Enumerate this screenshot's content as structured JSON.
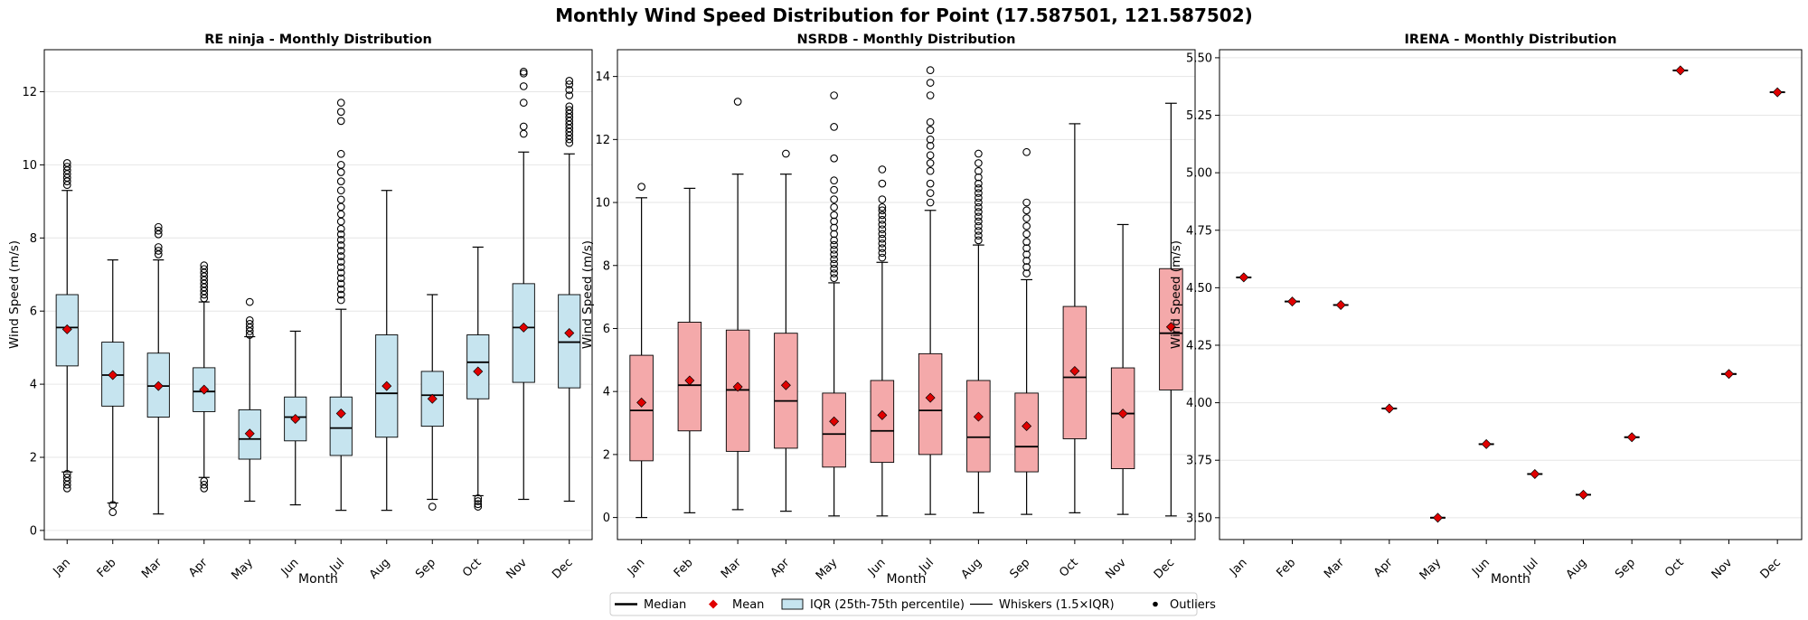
{
  "figure": {
    "title": "Monthly Wind Speed Distribution for Point (17.587501, 121.587502)"
  },
  "legend": {
    "entries": [
      "Median",
      "Mean",
      "IQR (25th-75th percentile)",
      "Whiskers (1.5×IQR)",
      "Outliers"
    ],
    "placement": "bottom-center"
  },
  "colors": {
    "re_ninja_box": "#c6e4ef",
    "nsrdb_box": "#f4a9aa",
    "mean_marker": "#e00000",
    "grid": "#e6e6e6"
  },
  "chart_data": [
    {
      "type": "box",
      "title": "RE ninja - Monthly Distribution",
      "xlabel": "Month",
      "ylabel": "Wind Speed (m/s)",
      "ylim": [
        -0.25,
        13.15
      ],
      "yticks": [
        "0",
        "2",
        "4",
        "6",
        "8",
        "10",
        "12"
      ],
      "grid": "horizontal",
      "categories": [
        "Jan",
        "Feb",
        "Mar",
        "Apr",
        "May",
        "Jun",
        "Jul",
        "Aug",
        "Sep",
        "Oct",
        "Nov",
        "Dec"
      ],
      "boxes": [
        {
          "month": "Jan",
          "whisker_low": 1.6,
          "q1": 4.5,
          "median": 5.55,
          "q3": 6.45,
          "whisker_high": 9.3,
          "mean": 5.5,
          "outliers": [
            1.15,
            1.25,
            1.35,
            1.45,
            1.55,
            9.45,
            9.55,
            9.65,
            9.75,
            9.85,
            9.95,
            10.05
          ]
        },
        {
          "month": "Feb",
          "whisker_low": 0.75,
          "q1": 3.4,
          "median": 4.25,
          "q3": 5.15,
          "whisker_high": 7.4,
          "mean": 4.25,
          "outliers": [
            0.5,
            0.7
          ]
        },
        {
          "month": "Mar",
          "whisker_low": 0.45,
          "q1": 3.1,
          "median": 3.95,
          "q3": 4.85,
          "whisker_high": 7.4,
          "mean": 3.95,
          "outliers": [
            7.55,
            7.65,
            7.75,
            8.1,
            8.2,
            8.3
          ]
        },
        {
          "month": "Apr",
          "whisker_low": 1.45,
          "q1": 3.25,
          "median": 3.8,
          "q3": 4.45,
          "whisker_high": 6.25,
          "mean": 3.85,
          "outliers": [
            1.15,
            1.25,
            1.35,
            6.35,
            6.45,
            6.55,
            6.65,
            6.75,
            6.85,
            6.95,
            7.05,
            7.15,
            7.25
          ]
        },
        {
          "month": "May",
          "whisker_low": 0.8,
          "q1": 1.95,
          "median": 2.5,
          "q3": 3.3,
          "whisker_high": 5.3,
          "mean": 2.65,
          "outliers": [
            5.35,
            5.45,
            5.55,
            5.65,
            5.75,
            6.25
          ]
        },
        {
          "month": "Jun",
          "whisker_low": 0.7,
          "q1": 2.45,
          "median": 3.1,
          "q3": 3.65,
          "whisker_high": 5.45,
          "mean": 3.05,
          "outliers": []
        },
        {
          "month": "Jul",
          "whisker_low": 0.55,
          "q1": 2.05,
          "median": 2.8,
          "q3": 3.65,
          "whisker_high": 6.05,
          "mean": 3.2,
          "outliers": [
            6.3,
            6.45,
            6.6,
            6.75,
            6.9,
            7.05,
            7.2,
            7.35,
            7.5,
            7.65,
            7.8,
            7.95,
            8.1,
            8.25,
            8.45,
            8.65,
            8.85,
            9.05,
            9.3,
            9.55,
            9.8,
            10.0,
            10.3,
            11.2,
            11.45,
            11.7
          ]
        },
        {
          "month": "Aug",
          "whisker_low": 0.55,
          "q1": 2.55,
          "median": 3.75,
          "q3": 5.35,
          "whisker_high": 9.3,
          "mean": 3.95,
          "outliers": []
        },
        {
          "month": "Sep",
          "whisker_low": 0.85,
          "q1": 2.85,
          "median": 3.7,
          "q3": 4.35,
          "whisker_high": 6.45,
          "mean": 3.6,
          "outliers": [
            0.65
          ]
        },
        {
          "month": "Oct",
          "whisker_low": 0.95,
          "q1": 3.6,
          "median": 4.6,
          "q3": 5.35,
          "whisker_high": 7.75,
          "mean": 4.35,
          "outliers": [
            0.65,
            0.72,
            0.8,
            0.88
          ]
        },
        {
          "month": "Nov",
          "whisker_low": 0.85,
          "q1": 4.05,
          "median": 5.55,
          "q3": 6.75,
          "whisker_high": 10.35,
          "mean": 5.55,
          "outliers": [
            10.85,
            11.05,
            11.7,
            12.15,
            12.5,
            12.55
          ]
        },
        {
          "month": "Dec",
          "whisker_low": 0.8,
          "q1": 3.9,
          "median": 5.15,
          "q3": 6.45,
          "whisker_high": 10.3,
          "mean": 5.4,
          "outliers": [
            10.6,
            10.7,
            10.8,
            10.9,
            11.0,
            11.1,
            11.2,
            11.3,
            11.4,
            11.5,
            11.6,
            11.9,
            12.05,
            12.2,
            12.3
          ]
        }
      ]
    },
    {
      "type": "box",
      "title": "NSRDB - Monthly Distribution",
      "xlabel": "Month",
      "ylabel": "Wind Speed (m/s)",
      "ylim": [
        -0.7,
        14.85
      ],
      "yticks": [
        "0",
        "2",
        "4",
        "6",
        "8",
        "10",
        "12",
        "14"
      ],
      "grid": "horizontal",
      "categories": [
        "Jan",
        "Feb",
        "Mar",
        "Apr",
        "May",
        "Jun",
        "Jul",
        "Aug",
        "Sep",
        "Oct",
        "Nov",
        "Dec"
      ],
      "boxes": [
        {
          "month": "Jan",
          "whisker_low": 0.0,
          "q1": 1.8,
          "median": 3.4,
          "q3": 5.15,
          "whisker_high": 10.15,
          "mean": 3.65,
          "outliers": [
            10.5
          ]
        },
        {
          "month": "Feb",
          "whisker_low": 0.15,
          "q1": 2.75,
          "median": 4.2,
          "q3": 6.2,
          "whisker_high": 10.45,
          "mean": 4.35,
          "outliers": []
        },
        {
          "month": "Mar",
          "whisker_low": 0.25,
          "q1": 2.1,
          "median": 4.05,
          "q3": 5.95,
          "whisker_high": 10.9,
          "mean": 4.15,
          "outliers": [
            13.2
          ]
        },
        {
          "month": "Apr",
          "whisker_low": 0.2,
          "q1": 2.2,
          "median": 3.7,
          "q3": 5.85,
          "whisker_high": 10.9,
          "mean": 4.2,
          "outliers": [
            11.55
          ]
        },
        {
          "month": "May",
          "whisker_low": 0.05,
          "q1": 1.6,
          "median": 2.65,
          "q3": 3.95,
          "whisker_high": 7.45,
          "mean": 3.05,
          "outliers": [
            7.6,
            7.75,
            7.9,
            8.05,
            8.2,
            8.35,
            8.5,
            8.65,
            8.8,
            9.0,
            9.2,
            9.4,
            9.6,
            9.85,
            10.1,
            10.4,
            10.7,
            11.4,
            12.4,
            13.4
          ]
        },
        {
          "month": "Jun",
          "whisker_low": 0.05,
          "q1": 1.75,
          "median": 2.75,
          "q3": 4.35,
          "whisker_high": 8.1,
          "mean": 3.25,
          "outliers": [
            8.25,
            8.4,
            8.55,
            8.7,
            8.85,
            9.0,
            9.15,
            9.3,
            9.45,
            9.6,
            9.75,
            9.85,
            10.1,
            10.6,
            11.05
          ]
        },
        {
          "month": "Jul",
          "whisker_low": 0.1,
          "q1": 2.0,
          "median": 3.4,
          "q3": 5.2,
          "whisker_high": 9.75,
          "mean": 3.8,
          "outliers": [
            10.0,
            10.3,
            10.6,
            11.0,
            11.25,
            11.5,
            11.8,
            12.0,
            12.3,
            12.55,
            13.4,
            13.8,
            14.2
          ]
        },
        {
          "month": "Aug",
          "whisker_low": 0.15,
          "q1": 1.45,
          "median": 2.55,
          "q3": 4.35,
          "whisker_high": 8.65,
          "mean": 3.2,
          "outliers": [
            8.8,
            8.95,
            9.1,
            9.25,
            9.4,
            9.55,
            9.7,
            9.85,
            10.0,
            10.15,
            10.3,
            10.45,
            10.6,
            10.8,
            11.0,
            11.25,
            11.55
          ]
        },
        {
          "month": "Sep",
          "whisker_low": 0.1,
          "q1": 1.45,
          "median": 2.25,
          "q3": 3.95,
          "whisker_high": 7.55,
          "mean": 2.9,
          "outliers": [
            7.75,
            7.95,
            8.15,
            8.35,
            8.55,
            8.75,
            9.0,
            9.25,
            9.5,
            9.75,
            10.0,
            11.6
          ]
        },
        {
          "month": "Oct",
          "whisker_low": 0.15,
          "q1": 2.5,
          "median": 4.45,
          "q3": 6.7,
          "whisker_high": 12.5,
          "mean": 4.65,
          "outliers": []
        },
        {
          "month": "Nov",
          "whisker_low": 0.1,
          "q1": 1.55,
          "median": 3.3,
          "q3": 4.75,
          "whisker_high": 9.3,
          "mean": 3.3,
          "outliers": []
        },
        {
          "month": "Dec",
          "whisker_low": 0.05,
          "q1": 4.05,
          "median": 5.85,
          "q3": 7.9,
          "whisker_high": 13.15,
          "mean": 6.05,
          "outliers": []
        }
      ]
    },
    {
      "type": "box",
      "title": "IRENA - Monthly Distribution",
      "xlabel": "Month",
      "ylabel": "Wind Speed (m/s)",
      "ylim": [
        3.405,
        5.535
      ],
      "yticks": [
        "3.50",
        "3.75",
        "4.00",
        "4.25",
        "4.50",
        "4.75",
        "5.00",
        "5.25",
        "5.50"
      ],
      "grid": "horizontal",
      "categories": [
        "Jan",
        "Feb",
        "Mar",
        "Apr",
        "May",
        "Jun",
        "Jul",
        "Aug",
        "Sep",
        "Oct",
        "Nov",
        "Dec"
      ],
      "boxes": [
        {
          "month": "Jan",
          "whisker_low": 4.545,
          "q1": 4.545,
          "median": 4.545,
          "q3": 4.545,
          "whisker_high": 4.545,
          "mean": 4.545,
          "outliers": []
        },
        {
          "month": "Feb",
          "whisker_low": 4.44,
          "q1": 4.44,
          "median": 4.44,
          "q3": 4.44,
          "whisker_high": 4.44,
          "mean": 4.44,
          "outliers": []
        },
        {
          "month": "Mar",
          "whisker_low": 4.425,
          "q1": 4.425,
          "median": 4.425,
          "q3": 4.425,
          "whisker_high": 4.425,
          "mean": 4.425,
          "outliers": []
        },
        {
          "month": "Apr",
          "whisker_low": 3.975,
          "q1": 3.975,
          "median": 3.975,
          "q3": 3.975,
          "whisker_high": 3.975,
          "mean": 3.975,
          "outliers": []
        },
        {
          "month": "May",
          "whisker_low": 3.5,
          "q1": 3.5,
          "median": 3.5,
          "q3": 3.5,
          "whisker_high": 3.5,
          "mean": 3.5,
          "outliers": []
        },
        {
          "month": "Jun",
          "whisker_low": 3.82,
          "q1": 3.82,
          "median": 3.82,
          "q3": 3.82,
          "whisker_high": 3.82,
          "mean": 3.82,
          "outliers": []
        },
        {
          "month": "Jul",
          "whisker_low": 3.69,
          "q1": 3.69,
          "median": 3.69,
          "q3": 3.69,
          "whisker_high": 3.69,
          "mean": 3.69,
          "outliers": []
        },
        {
          "month": "Aug",
          "whisker_low": 3.6,
          "q1": 3.6,
          "median": 3.6,
          "q3": 3.6,
          "whisker_high": 3.6,
          "mean": 3.6,
          "outliers": []
        },
        {
          "month": "Sep",
          "whisker_low": 3.85,
          "q1": 3.85,
          "median": 3.85,
          "q3": 3.85,
          "whisker_high": 3.85,
          "mean": 3.85,
          "outliers": []
        },
        {
          "month": "Oct",
          "whisker_low": 5.445,
          "q1": 5.445,
          "median": 5.445,
          "q3": 5.445,
          "whisker_high": 5.445,
          "mean": 5.445,
          "outliers": []
        },
        {
          "month": "Nov",
          "whisker_low": 4.125,
          "q1": 4.125,
          "median": 4.125,
          "q3": 4.125,
          "whisker_high": 4.125,
          "mean": 4.125,
          "outliers": []
        },
        {
          "month": "Dec",
          "whisker_low": 5.35,
          "q1": 5.35,
          "median": 5.35,
          "q3": 5.35,
          "whisker_high": 5.35,
          "mean": 5.35,
          "outliers": []
        }
      ]
    }
  ]
}
